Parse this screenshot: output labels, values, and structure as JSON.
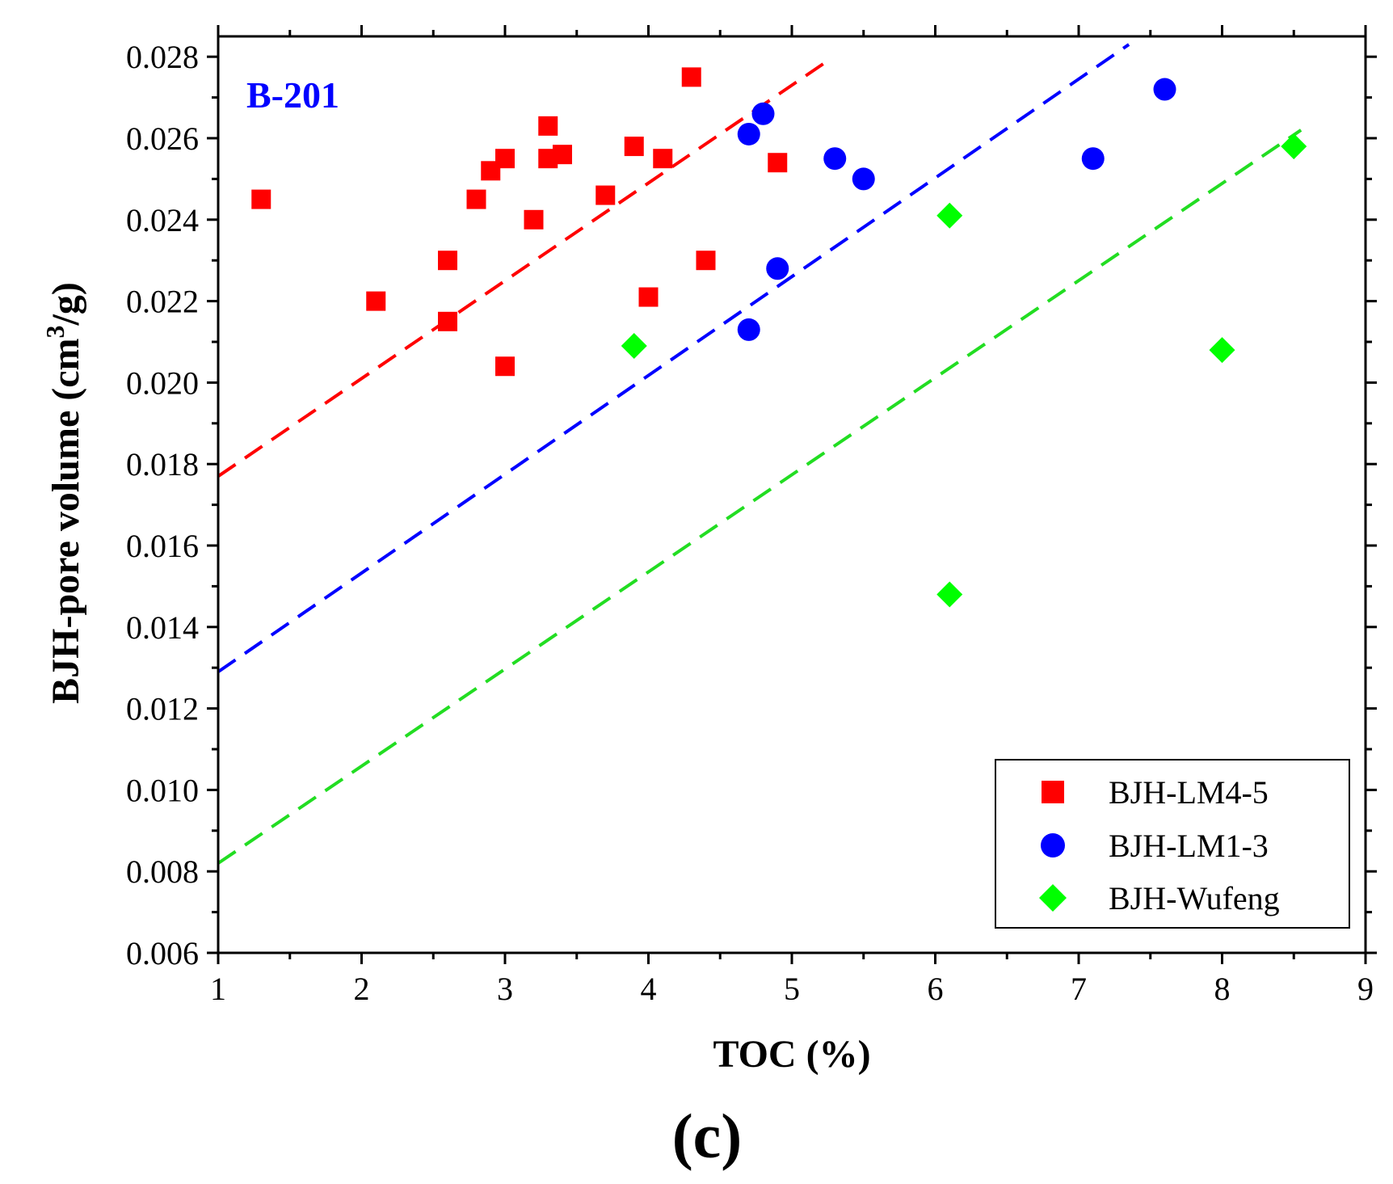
{
  "chart_data": {
    "type": "scatter",
    "title": "",
    "annotation": "B-201",
    "panel_label": "(c)",
    "xlabel": "TOC (%)",
    "ylabel_main": "BJH-pore volume (cm",
    "ylabel_sup": "3",
    "ylabel_tail": "/g)",
    "xlim": [
      1,
      9
    ],
    "ylim": [
      0.006,
      0.0285
    ],
    "xticks": [
      1,
      2,
      3,
      4,
      5,
      6,
      7,
      8,
      9
    ],
    "xtick_labels": [
      "1",
      "2",
      "3",
      "4",
      "5",
      "6",
      "7",
      "8",
      "9"
    ],
    "yticks": [
      0.006,
      0.008,
      0.01,
      0.012,
      0.014,
      0.016,
      0.018,
      0.02,
      0.022,
      0.024,
      0.026,
      0.028
    ],
    "ytick_labels": [
      "0.006",
      "0.008",
      "0.010",
      "0.012",
      "0.014",
      "0.016",
      "0.018",
      "0.020",
      "0.022",
      "0.024",
      "0.026",
      "0.028"
    ],
    "grid": false,
    "legend_position": "bottom-right",
    "annotation_color": "#0000ff",
    "series": [
      {
        "name": "BJH-LM4-5",
        "marker": "square",
        "color": "#ff0000",
        "x": [
          1.3,
          2.1,
          2.6,
          2.6,
          2.8,
          2.9,
          3.0,
          3.0,
          3.2,
          3.3,
          3.3,
          3.4,
          3.7,
          3.9,
          4.0,
          4.1,
          4.3,
          4.4,
          4.9
        ],
        "y": [
          0.0245,
          0.022,
          0.023,
          0.0215,
          0.0245,
          0.0252,
          0.0255,
          0.0204,
          0.024,
          0.0263,
          0.0255,
          0.0256,
          0.0246,
          0.0258,
          0.0221,
          0.0255,
          0.0275,
          0.023,
          0.0254
        ],
        "fit": {
          "x": [
            1.0,
            5.25
          ],
          "y": [
            0.0177,
            0.0279
          ]
        }
      },
      {
        "name": "BJH-LM1-3",
        "marker": "circle",
        "color": "#0000ff",
        "x": [
          4.7,
          4.7,
          4.8,
          4.9,
          5.3,
          5.5,
          7.1,
          7.6
        ],
        "y": [
          0.0261,
          0.0213,
          0.0266,
          0.0228,
          0.0255,
          0.025,
          0.0255,
          0.0272
        ],
        "fit": {
          "x": [
            1.0,
            7.35
          ],
          "y": [
            0.0129,
            0.0283
          ]
        }
      },
      {
        "name": "BJH-Wufeng",
        "marker": "diamond",
        "color": "#00ff00",
        "x": [
          3.9,
          6.1,
          6.1,
          8.0,
          8.5
        ],
        "y": [
          0.0209,
          0.0241,
          0.0148,
          0.0208,
          0.0258
        ],
        "fit": {
          "x": [
            1.0,
            8.55
          ],
          "y": [
            0.0082,
            0.0262
          ]
        }
      }
    ]
  }
}
